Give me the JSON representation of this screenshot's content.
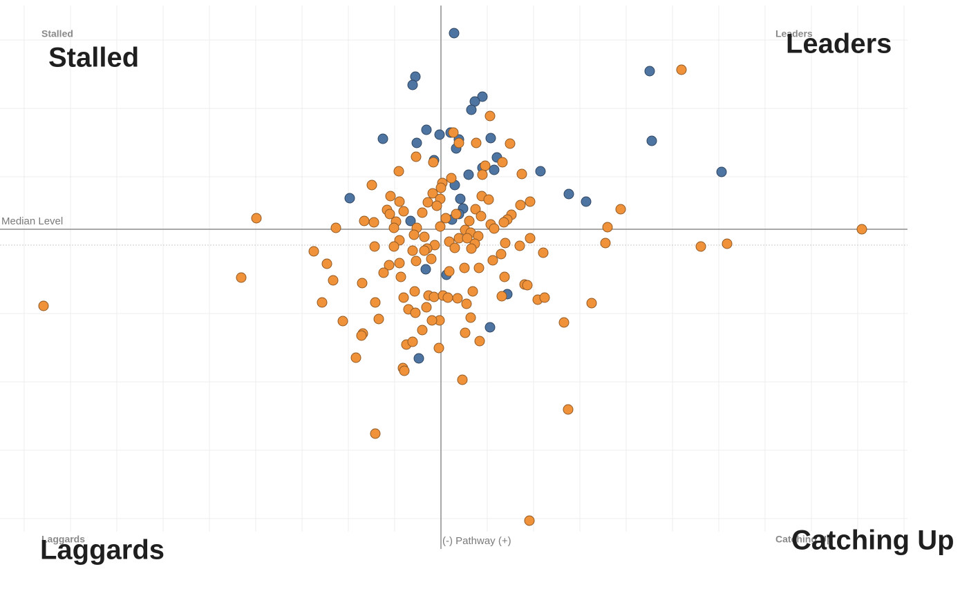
{
  "chart_data": {
    "type": "scatter",
    "xlim": [
      -637,
      675
    ],
    "ylim": [
      -440,
      355
    ],
    "xticks": [
      -603,
      -536,
      -469,
      -402,
      -335,
      -268,
      -201,
      -134,
      -67,
      0,
      67,
      134,
      201,
      268,
      335,
      402,
      469,
      536,
      603,
      670
    ],
    "yticks": [
      -396,
      -297,
      -198,
      -99,
      0,
      99,
      198,
      297
    ],
    "grid": true,
    "reference_lines": {
      "x": 0,
      "y": 23,
      "x_label": "(-) Pathway (+)",
      "y_label": "Median Level"
    },
    "quadrant_labels": [
      "Stalled",
      "Leaders",
      "Laggards",
      "Catching Up"
    ],
    "overlay_labels": [
      "Stalled",
      "Leaders",
      "Laggards",
      "Catching Up"
    ],
    "series": [
      {
        "color": "#4e74a2",
        "x": [
          19,
          -37,
          -41,
          60,
          49,
          44,
          -21,
          14,
          -2,
          26,
          -84,
          -35,
          72,
          22,
          81,
          -10,
          60,
          77,
          40,
          144,
          20,
          -132,
          185,
          210,
          28,
          32,
          26,
          16,
          -44,
          -22,
          8,
          96,
          71,
          -32,
          302,
          305,
          406
        ],
        "y": [
          307,
          244,
          232,
          215,
          208,
          196,
          167,
          163,
          160,
          153,
          154,
          148,
          155,
          140,
          127,
          123,
          112,
          109,
          102,
          107,
          87,
          68,
          74,
          63,
          67,
          53,
          45,
          37,
          35,
          -35,
          -43,
          -71,
          -119,
          -164,
          252,
          151,
          106
        ]
      },
      {
        "color": "#f0923a",
        "x": [
          348,
          71,
          18,
          26,
          51,
          100,
          -36,
          -11,
          89,
          64,
          -61,
          60,
          117,
          15,
          2,
          0,
          -100,
          -12,
          59,
          -1,
          -73,
          69,
          129,
          115,
          -19,
          -6,
          -60,
          -78,
          -54,
          -74,
          -27,
          22,
          50,
          58,
          102,
          260,
          96,
          7,
          -111,
          -97,
          -65,
          -267,
          41,
          72,
          91,
          77,
          -152,
          -68,
          -35,
          -1,
          35,
          43,
          241,
          609,
          -24,
          26,
          38,
          54,
          -60,
          -39,
          -9,
          -20,
          12,
          -96,
          93,
          114,
          129,
          238,
          376,
          414,
          49,
          -184,
          -68,
          -41,
          -24,
          -14,
          20,
          44,
          87,
          148,
          75,
          -165,
          -75,
          -60,
          -36,
          -83,
          -58,
          12,
          34,
          55,
          92,
          121,
          125,
          -289,
          -156,
          -114,
          -38,
          46,
          -18,
          -10,
          3,
          10,
          24,
          37,
          -54,
          88,
          140,
          150,
          -172,
          -95,
          218,
          -47,
          -37,
          -21,
          -2,
          43,
          -13,
          -90,
          -142,
          178,
          -575,
          -113,
          -115,
          -27,
          35,
          56,
          -50,
          -41,
          -3,
          -123,
          -55,
          -53,
          31,
          184,
          -95,
          128
        ],
        "y": [
          254,
          187,
          163,
          148,
          148,
          147,
          128,
          120,
          120,
          115,
          107,
          102,
          103,
          97,
          90,
          83,
          87,
          75,
          71,
          67,
          71,
          66,
          63,
          58,
          62,
          57,
          63,
          51,
          49,
          45,
          47,
          45,
          52,
          42,
          44,
          52,
          37,
          39,
          35,
          33,
          34,
          39,
          35,
          30,
          33,
          24,
          25,
          25,
          25,
          27,
          22,
          18,
          26,
          23,
          12,
          10,
          10,
          13,
          7,
          15,
          0,
          -5,
          5,
          -2,
          3,
          -1,
          10,
          3,
          -2,
          2,
          2,
          -9,
          -2,
          -8,
          -8,
          -20,
          -4,
          -5,
          -13,
          -11,
          -22,
          -27,
          -29,
          -26,
          -23,
          -40,
          -46,
          -38,
          -33,
          -33,
          -46,
          -57,
          -58,
          -47,
          -51,
          -55,
          -67,
          -67,
          -73,
          -75,
          -73,
          -76,
          -77,
          -85,
          -76,
          -74,
          -79,
          -76,
          -83,
          -83,
          -84,
          -93,
          -98,
          -90,
          -109,
          -105,
          -109,
          -107,
          -110,
          -112,
          -88,
          -128,
          -131,
          -123,
          -127,
          -139,
          -144,
          -140,
          -149,
          -163,
          -178,
          -182,
          -195,
          -238,
          -273,
          -399
        ]
      }
    ]
  }
}
